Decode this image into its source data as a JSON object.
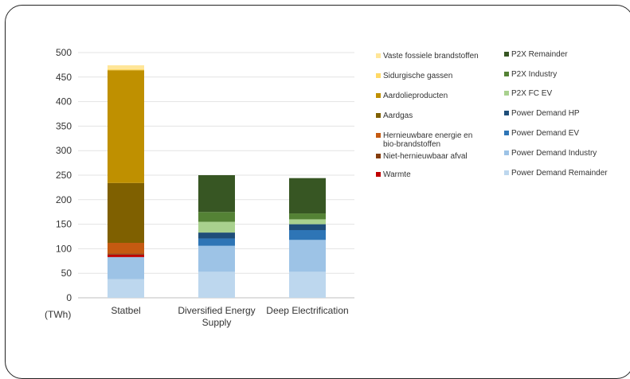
{
  "chart_data": {
    "type": "bar",
    "stacked": true,
    "unit": "(TWh)",
    "ylim": [
      0,
      500
    ],
    "yticks": [
      0,
      50,
      100,
      150,
      200,
      250,
      300,
      350,
      400,
      450,
      500
    ],
    "grid": true,
    "legend_position": "right",
    "categories": [
      "Statbel",
      "Diversified Energy Supply",
      "Deep Electrification"
    ],
    "category_lines": [
      [
        "Statbel"
      ],
      [
        "Diversified Energy",
        "Supply"
      ],
      [
        "Deep Electrification"
      ]
    ],
    "series": [
      {
        "name": "Power Demand Remainder",
        "color": "#bdd7ee",
        "values": [
          38,
          53,
          53
        ]
      },
      {
        "name": "Power Demand Industry",
        "color": "#9dc3e6",
        "values": [
          45,
          53,
          65
        ]
      },
      {
        "name": "Power Demand EV",
        "color": "#2e75b6",
        "values": [
          0,
          15,
          20
        ]
      },
      {
        "name": "Power Demand HP",
        "color": "#1f4e79",
        "values": [
          0,
          12,
          12
        ]
      },
      {
        "name": "P2X FC EV",
        "color": "#a9d18e",
        "values": [
          0,
          22,
          10
        ]
      },
      {
        "name": "P2X Industry",
        "color": "#548235",
        "values": [
          0,
          20,
          12
        ]
      },
      {
        "name": "P2X Remainder",
        "color": "#375623",
        "values": [
          0,
          75,
          72
        ]
      },
      {
        "name": "Warmte",
        "color": "#c00000",
        "values": [
          5,
          0,
          0
        ]
      },
      {
        "name": "Niet-hernieuwbaar afval",
        "color": "#843c0c",
        "values": [
          2,
          0,
          0
        ]
      },
      {
        "name": "Hernieuwbare energie en bio-brandstoffen",
        "color": "#c55a11",
        "values": [
          22,
          0,
          0
        ]
      },
      {
        "name": "Aardgas",
        "color": "#7f6000",
        "values": [
          122,
          0,
          0
        ]
      },
      {
        "name": "Aardolieproducten",
        "color": "#bf9000",
        "values": [
          230,
          0,
          0
        ]
      },
      {
        "name": "Sidurgische gassen",
        "color": "#ffd966",
        "values": [
          2,
          0,
          0
        ]
      },
      {
        "name": "Vaste fossiele brandstoffen",
        "color": "#ffe699",
        "values": [
          8,
          0,
          0
        ]
      }
    ],
    "legend_left": [
      {
        "lines": [
          "Vaste fossiele brandstoffen"
        ],
        "color": "#ffe699"
      },
      {
        "lines": [
          "Sidurgische gassen"
        ],
        "color": "#ffd966"
      },
      {
        "lines": [
          "Aardolieproducten"
        ],
        "color": "#bf9000"
      },
      {
        "lines": [
          "Aardgas"
        ],
        "color": "#7f6000"
      },
      {
        "lines": [
          "Hernieuwbare energie en",
          "bio-brandstoffen"
        ],
        "color": "#c55a11"
      },
      {
        "lines": [
          "Niet-hernieuwbaar afval"
        ],
        "color": "#843c0c"
      },
      {
        "lines": [
          "Warmte"
        ],
        "color": "#c00000"
      }
    ],
    "legend_right": [
      {
        "lines": [
          "P2X Remainder"
        ],
        "color": "#375623"
      },
      {
        "lines": [
          "P2X Industry"
        ],
        "color": "#548235"
      },
      {
        "lines": [
          "P2X FC EV"
        ],
        "color": "#a9d18e"
      },
      {
        "lines": [
          "Power Demand HP"
        ],
        "color": "#1f4e79"
      },
      {
        "lines": [
          "Power Demand EV"
        ],
        "color": "#2e75b6"
      },
      {
        "lines": [
          "Power Demand Industry"
        ],
        "color": "#9dc3e6"
      },
      {
        "lines": [
          "Power Demand Remainder"
        ],
        "color": "#bdd7ee"
      }
    ]
  }
}
